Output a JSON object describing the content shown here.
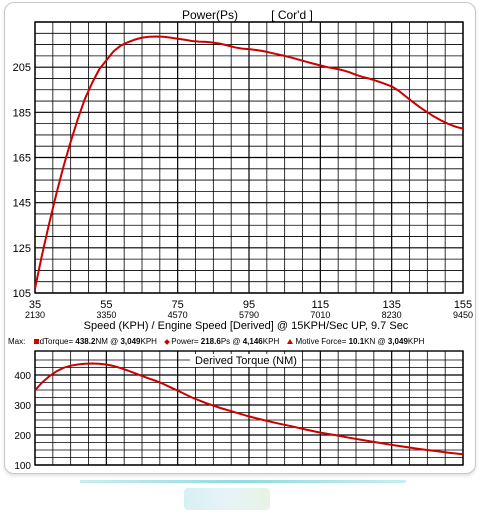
{
  "colors": {
    "curve": "#cc0000",
    "grid": "#000000",
    "marker": "#cc0000"
  },
  "top_chart": {
    "title": "Power(Ps)",
    "subtitle": "[ Cor'd ]",
    "xlabel": "Speed (KPH) / Engine Speed [Derived] @ 15KPH/Sec UP, 9.7 Sec"
  },
  "max_row": {
    "label": "Max:",
    "torque_prefix": "dTorque=",
    "torque_value": "438.2",
    "torque_unit": "NM @",
    "torque_at": "3,049",
    "torque_at_unit": "KPH",
    "power_prefix": "Power=",
    "power_value": "218.6",
    "power_unit": "Ps @",
    "power_at": "4,146",
    "power_at_unit": "KPH",
    "force_prefix": "Motive Force=",
    "force_value": "10.1",
    "force_unit": "KN @",
    "force_at": "3,049",
    "force_at_unit": "KPH"
  },
  "bottom_chart": {
    "title": "Derived Torque (NM)"
  },
  "chart_data": [
    {
      "type": "line",
      "title": "Power(Ps)",
      "subtitle": "[ Cor'd ]",
      "xlabel": "Speed (KPH) / Engine Speed [Derived] @ 15KPH/Sec UP, 9.7 Sec",
      "ylabel": "",
      "xlim": [
        35,
        155
      ],
      "ylim": [
        105,
        225
      ],
      "x_ticks": [
        35,
        55,
        75,
        95,
        115,
        135,
        155
      ],
      "x_secondary_ticks": [
        "2130",
        "3350",
        "4570",
        "5790",
        "7010",
        "8230",
        "9450"
      ],
      "y_ticks": [
        105,
        125,
        145,
        165,
        185,
        205
      ],
      "grid": true,
      "series": [
        {
          "x": [
            35,
            37,
            39,
            41,
            43,
            45,
            47,
            49,
            51,
            53,
            55,
            57,
            59,
            61,
            63,
            65,
            67,
            69,
            71,
            73,
            75,
            77,
            79,
            81,
            83,
            85,
            87,
            89,
            91,
            93,
            95,
            97,
            99,
            101,
            103,
            105,
            107,
            109,
            111,
            113,
            115,
            117,
            119,
            121,
            123,
            125,
            127,
            129,
            131,
            133,
            135,
            137,
            139,
            141,
            143,
            145,
            147,
            149,
            151,
            153,
            155
          ],
          "values": [
            107,
            122,
            136,
            149,
            161,
            172,
            182,
            191,
            198,
            204,
            208,
            212,
            214.5,
            216,
            217.2,
            218.1,
            218.5,
            218.6,
            218.5,
            218.1,
            217.6,
            217.1,
            216.6,
            216.3,
            216.2,
            215.9,
            215.4,
            214.6,
            213.8,
            213.2,
            213,
            212.6,
            212.1,
            211.4,
            210.7,
            210,
            209.2,
            208.3,
            207.4,
            206.6,
            205.8,
            205,
            204.4,
            203.8,
            202.8,
            201.6,
            200.6,
            199.8,
            198.8,
            197.7,
            196.5,
            194.5,
            192,
            189.5,
            187.2,
            185,
            183,
            181.3,
            179.8,
            178.6,
            177.8
          ]
        }
      ]
    },
    {
      "type": "line",
      "title": "Derived Torque (NM)",
      "xlabel": "",
      "ylabel": "",
      "xlim": [
        35,
        155
      ],
      "ylim": [
        100,
        480
      ],
      "y_ticks": [
        100,
        200,
        300,
        400
      ],
      "grid": true,
      "series": [
        {
          "x": [
            35,
            37,
            39,
            41,
            43,
            45,
            47,
            49,
            51,
            53,
            55,
            57,
            59,
            61,
            63,
            65,
            67,
            69,
            71,
            73,
            75,
            79,
            83,
            87,
            91,
            95,
            99,
            103,
            107,
            111,
            115,
            119,
            123,
            127,
            131,
            135,
            139,
            143,
            147,
            151,
            155
          ],
          "values": [
            349,
            375,
            396,
            412,
            424,
            431,
            435,
            437.5,
            438.2,
            437.5,
            435,
            430,
            423,
            415,
            406,
            397,
            388,
            380,
            370,
            359,
            348,
            325,
            306,
            290,
            276,
            262,
            250,
            239,
            229,
            218,
            208,
            200,
            191,
            183,
            175,
            167,
            160,
            153,
            147,
            141,
            136
          ]
        }
      ]
    }
  ]
}
